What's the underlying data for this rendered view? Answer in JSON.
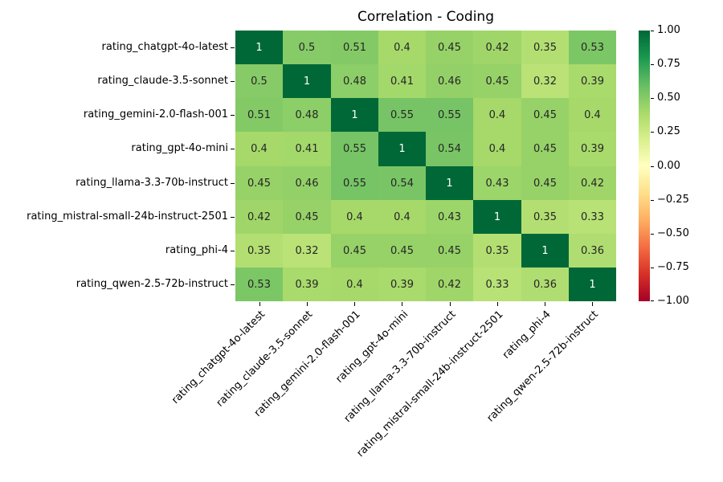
{
  "chart_data": {
    "type": "heatmap",
    "title": "Correlation - Coding",
    "categories": [
      "rating_chatgpt-4o-latest",
      "rating_claude-3.5-sonnet",
      "rating_gemini-2.0-flash-001",
      "rating_gpt-4o-mini",
      "rating_llama-3.3-70b-instruct",
      "rating_mistral-small-24b-instruct-2501",
      "rating_phi-4",
      "rating_qwen-2.5-72b-instruct"
    ],
    "matrix": [
      [
        1,
        0.5,
        0.51,
        0.4,
        0.45,
        0.42,
        0.35,
        0.53
      ],
      [
        0.5,
        1,
        0.48,
        0.41,
        0.46,
        0.45,
        0.32,
        0.39
      ],
      [
        0.51,
        0.48,
        1,
        0.55,
        0.55,
        0.4,
        0.45,
        0.4
      ],
      [
        0.4,
        0.41,
        0.55,
        1,
        0.54,
        0.4,
        0.45,
        0.39
      ],
      [
        0.45,
        0.46,
        0.55,
        0.54,
        1,
        0.43,
        0.45,
        0.42
      ],
      [
        0.42,
        0.45,
        0.4,
        0.4,
        0.43,
        1,
        0.35,
        0.33
      ],
      [
        0.35,
        0.32,
        0.45,
        0.45,
        0.45,
        0.35,
        1,
        0.36
      ],
      [
        0.53,
        0.39,
        0.4,
        0.39,
        0.42,
        0.33,
        0.36,
        1
      ]
    ],
    "vmin": -1,
    "vmax": 1,
    "colormap": "RdYlGn",
    "grid": false,
    "legend_position": "right-colorbar",
    "colorbar_ticks": [
      {
        "label": "1.00",
        "value": 1
      },
      {
        "label": "0.75",
        "value": 0.75
      },
      {
        "label": "0.50",
        "value": 0.5
      },
      {
        "label": "0.25",
        "value": 0.25
      },
      {
        "label": "0.00",
        "value": 0
      },
      {
        "label": "−0.25",
        "value": -0.25
      },
      {
        "label": "−0.50",
        "value": -0.5
      },
      {
        "label": "−0.75",
        "value": -0.75
      },
      {
        "label": "−1.00",
        "value": -1
      }
    ]
  },
  "colors": {
    "background": "#ffffff",
    "text": "#000000",
    "annotation_dark": "#262626",
    "annotation_light": "#ffffff",
    "colormap_stops": [
      "#a50026",
      "#d73027",
      "#f46d43",
      "#fdae61",
      "#fee08b",
      "#ffffbf",
      "#d9ef8b",
      "#a6d96a",
      "#66bd63",
      "#1a9850",
      "#006837"
    ]
  }
}
